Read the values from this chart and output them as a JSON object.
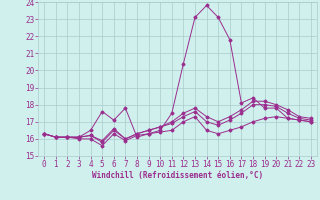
{
  "x": [
    0,
    1,
    2,
    3,
    4,
    5,
    6,
    7,
    8,
    9,
    10,
    11,
    12,
    13,
    14,
    15,
    16,
    17,
    18,
    19,
    20,
    21,
    22,
    23
  ],
  "line1": [
    16.3,
    16.1,
    16.1,
    16.0,
    16.0,
    15.6,
    16.3,
    15.9,
    16.2,
    16.3,
    16.4,
    16.5,
    17.0,
    17.3,
    16.5,
    16.3,
    16.5,
    16.7,
    17.0,
    17.2,
    17.3,
    17.2,
    17.1,
    17.0
  ],
  "line2": [
    16.3,
    16.1,
    16.1,
    16.1,
    16.2,
    15.8,
    16.5,
    16.0,
    16.3,
    16.5,
    16.7,
    16.9,
    17.3,
    17.6,
    17.0,
    16.8,
    17.1,
    17.5,
    18.0,
    18.0,
    17.9,
    17.5,
    17.2,
    17.1
  ],
  "line3": [
    16.3,
    16.1,
    16.1,
    16.1,
    16.5,
    17.6,
    17.1,
    17.8,
    16.1,
    16.3,
    16.5,
    17.5,
    20.4,
    23.1,
    23.8,
    23.1,
    21.8,
    18.1,
    18.4,
    17.8,
    17.8,
    17.2,
    17.1,
    17.0
  ],
  "line4": [
    16.3,
    16.1,
    16.1,
    16.1,
    16.2,
    15.9,
    16.6,
    16.0,
    16.3,
    16.5,
    16.7,
    17.0,
    17.5,
    17.8,
    17.3,
    17.0,
    17.3,
    17.7,
    18.2,
    18.2,
    18.0,
    17.7,
    17.3,
    17.2
  ],
  "color": "#9b2d8e",
  "bg_color": "#cff0ec",
  "grid_color": "#aacccc",
  "xlabel": "Windchill (Refroidissement éolien,°C)",
  "ylim": [
    15,
    24
  ],
  "xlim": [
    -0.5,
    23.5
  ],
  "yticks": [
    15,
    16,
    17,
    18,
    19,
    20,
    21,
    22,
    23,
    24
  ],
  "xticks": [
    0,
    1,
    2,
    3,
    4,
    5,
    6,
    7,
    8,
    9,
    10,
    11,
    12,
    13,
    14,
    15,
    16,
    17,
    18,
    19,
    20,
    21,
    22,
    23
  ],
  "tick_fontsize": 5.5,
  "xlabel_fontsize": 5.5
}
